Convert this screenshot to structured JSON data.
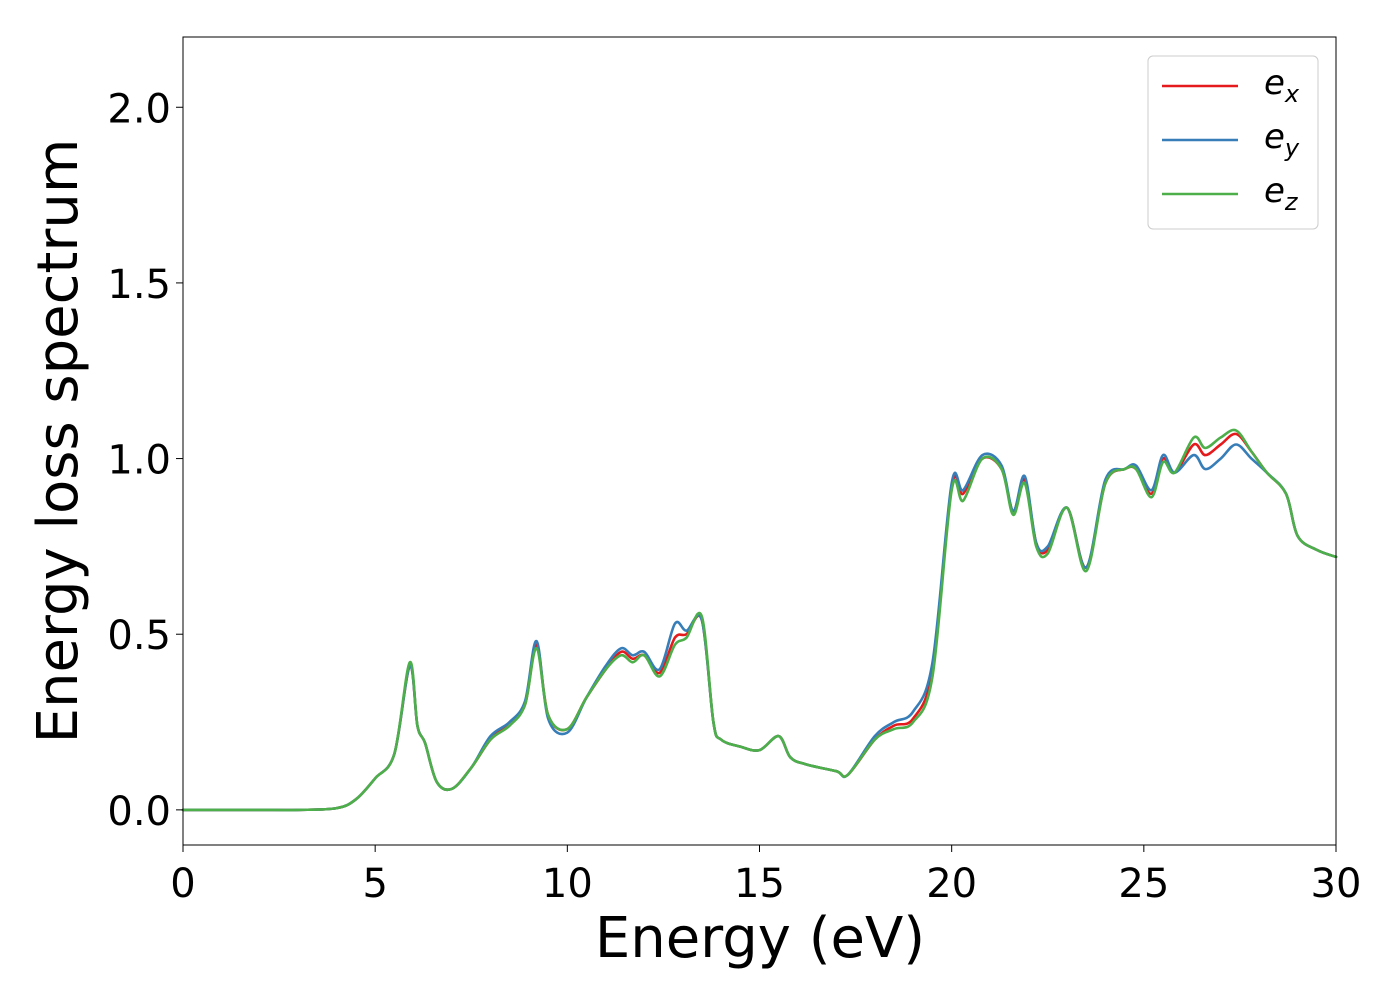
{
  "chart_data": {
    "type": "line",
    "title": "",
    "xlabel": "Energy (eV)",
    "ylabel": "Energy loss spectrum",
    "xlim": [
      0,
      30
    ],
    "ylim": [
      -0.1,
      2.2
    ],
    "xticks": [
      0,
      5,
      10,
      15,
      20,
      25,
      30
    ],
    "xtick_labels": [
      "0",
      "5",
      "10",
      "15",
      "20",
      "25",
      "30"
    ],
    "yticks": [
      0.0,
      0.5,
      1.0,
      1.5,
      2.0
    ],
    "ytick_labels": [
      "0.0",
      "0.5",
      "1.0",
      "1.5",
      "2.0"
    ],
    "grid": false,
    "legend_position": "top-right",
    "x": [
      0,
      1,
      2,
      3,
      4,
      4.5,
      5,
      5.5,
      5.9,
      6.1,
      6.3,
      6.6,
      7.0,
      7.5,
      8.0,
      8.5,
      8.9,
      9.2,
      9.5,
      10.0,
      10.5,
      11.0,
      11.4,
      11.7,
      12.0,
      12.4,
      12.8,
      13.1,
      13.5,
      13.8,
      14.0,
      14.5,
      15.0,
      15.5,
      15.8,
      16.2,
      17.0,
      17.3,
      18.0,
      18.5,
      19.0,
      19.5,
      20.0,
      20.3,
      20.8,
      21.3,
      21.6,
      21.9,
      22.2,
      22.5,
      23.0,
      23.5,
      24.0,
      24.5,
      24.8,
      25.2,
      25.5,
      25.8,
      26.3,
      26.6,
      27.0,
      27.4,
      27.8,
      28.2,
      28.7,
      29.0,
      29.5,
      30.0
    ],
    "series": [
      {
        "name": "e_x",
        "color": "#e41a1c",
        "values": [
          0.0,
          0.0,
          0.0,
          0.0,
          0.005,
          0.03,
          0.09,
          0.16,
          0.41,
          0.24,
          0.19,
          0.08,
          0.06,
          0.12,
          0.2,
          0.25,
          0.3,
          0.47,
          0.27,
          0.23,
          0.32,
          0.4,
          0.45,
          0.43,
          0.44,
          0.39,
          0.49,
          0.5,
          0.54,
          0.25,
          0.2,
          0.18,
          0.17,
          0.21,
          0.15,
          0.13,
          0.11,
          0.1,
          0.2,
          0.24,
          0.26,
          0.4,
          0.92,
          0.9,
          1.0,
          0.97,
          0.85,
          0.94,
          0.76,
          0.74,
          0.86,
          0.69,
          0.93,
          0.97,
          0.97,
          0.9,
          1.0,
          0.96,
          1.04,
          1.01,
          1.04,
          1.07,
          1.02,
          0.96,
          0.9,
          0.78,
          0.74,
          0.72
        ]
      },
      {
        "name": "e_y",
        "color": "#377eb8",
        "values": [
          0.0,
          0.0,
          0.0,
          0.0,
          0.005,
          0.03,
          0.09,
          0.16,
          0.41,
          0.24,
          0.19,
          0.08,
          0.06,
          0.12,
          0.21,
          0.25,
          0.31,
          0.48,
          0.26,
          0.22,
          0.32,
          0.41,
          0.46,
          0.44,
          0.45,
          0.4,
          0.53,
          0.51,
          0.54,
          0.25,
          0.2,
          0.18,
          0.17,
          0.21,
          0.15,
          0.13,
          0.11,
          0.1,
          0.21,
          0.25,
          0.28,
          0.42,
          0.93,
          0.91,
          1.01,
          0.98,
          0.85,
          0.95,
          0.76,
          0.75,
          0.86,
          0.69,
          0.94,
          0.97,
          0.98,
          0.91,
          1.01,
          0.96,
          1.01,
          0.97,
          1.0,
          1.04,
          1.0,
          0.96,
          0.9,
          0.78,
          0.74,
          0.72
        ]
      },
      {
        "name": "e_z",
        "color": "#4daf4a",
        "values": [
          0.0,
          0.0,
          0.0,
          0.0,
          0.005,
          0.03,
          0.09,
          0.16,
          0.42,
          0.24,
          0.19,
          0.08,
          0.06,
          0.12,
          0.2,
          0.24,
          0.3,
          0.46,
          0.27,
          0.23,
          0.32,
          0.4,
          0.44,
          0.42,
          0.44,
          0.38,
          0.47,
          0.49,
          0.55,
          0.25,
          0.2,
          0.18,
          0.17,
          0.21,
          0.15,
          0.13,
          0.11,
          0.1,
          0.2,
          0.23,
          0.25,
          0.38,
          0.91,
          0.88,
          1.0,
          0.97,
          0.84,
          0.93,
          0.75,
          0.73,
          0.86,
          0.68,
          0.93,
          0.97,
          0.97,
          0.89,
          0.99,
          0.96,
          1.06,
          1.03,
          1.06,
          1.08,
          1.02,
          0.96,
          0.9,
          0.78,
          0.74,
          0.72
        ]
      }
    ],
    "legend": [
      {
        "base": "e",
        "sub": "x",
        "color": "#e41a1c"
      },
      {
        "base": "e",
        "sub": "y",
        "color": "#377eb8"
      },
      {
        "base": "e",
        "sub": "z",
        "color": "#4daf4a"
      }
    ]
  }
}
